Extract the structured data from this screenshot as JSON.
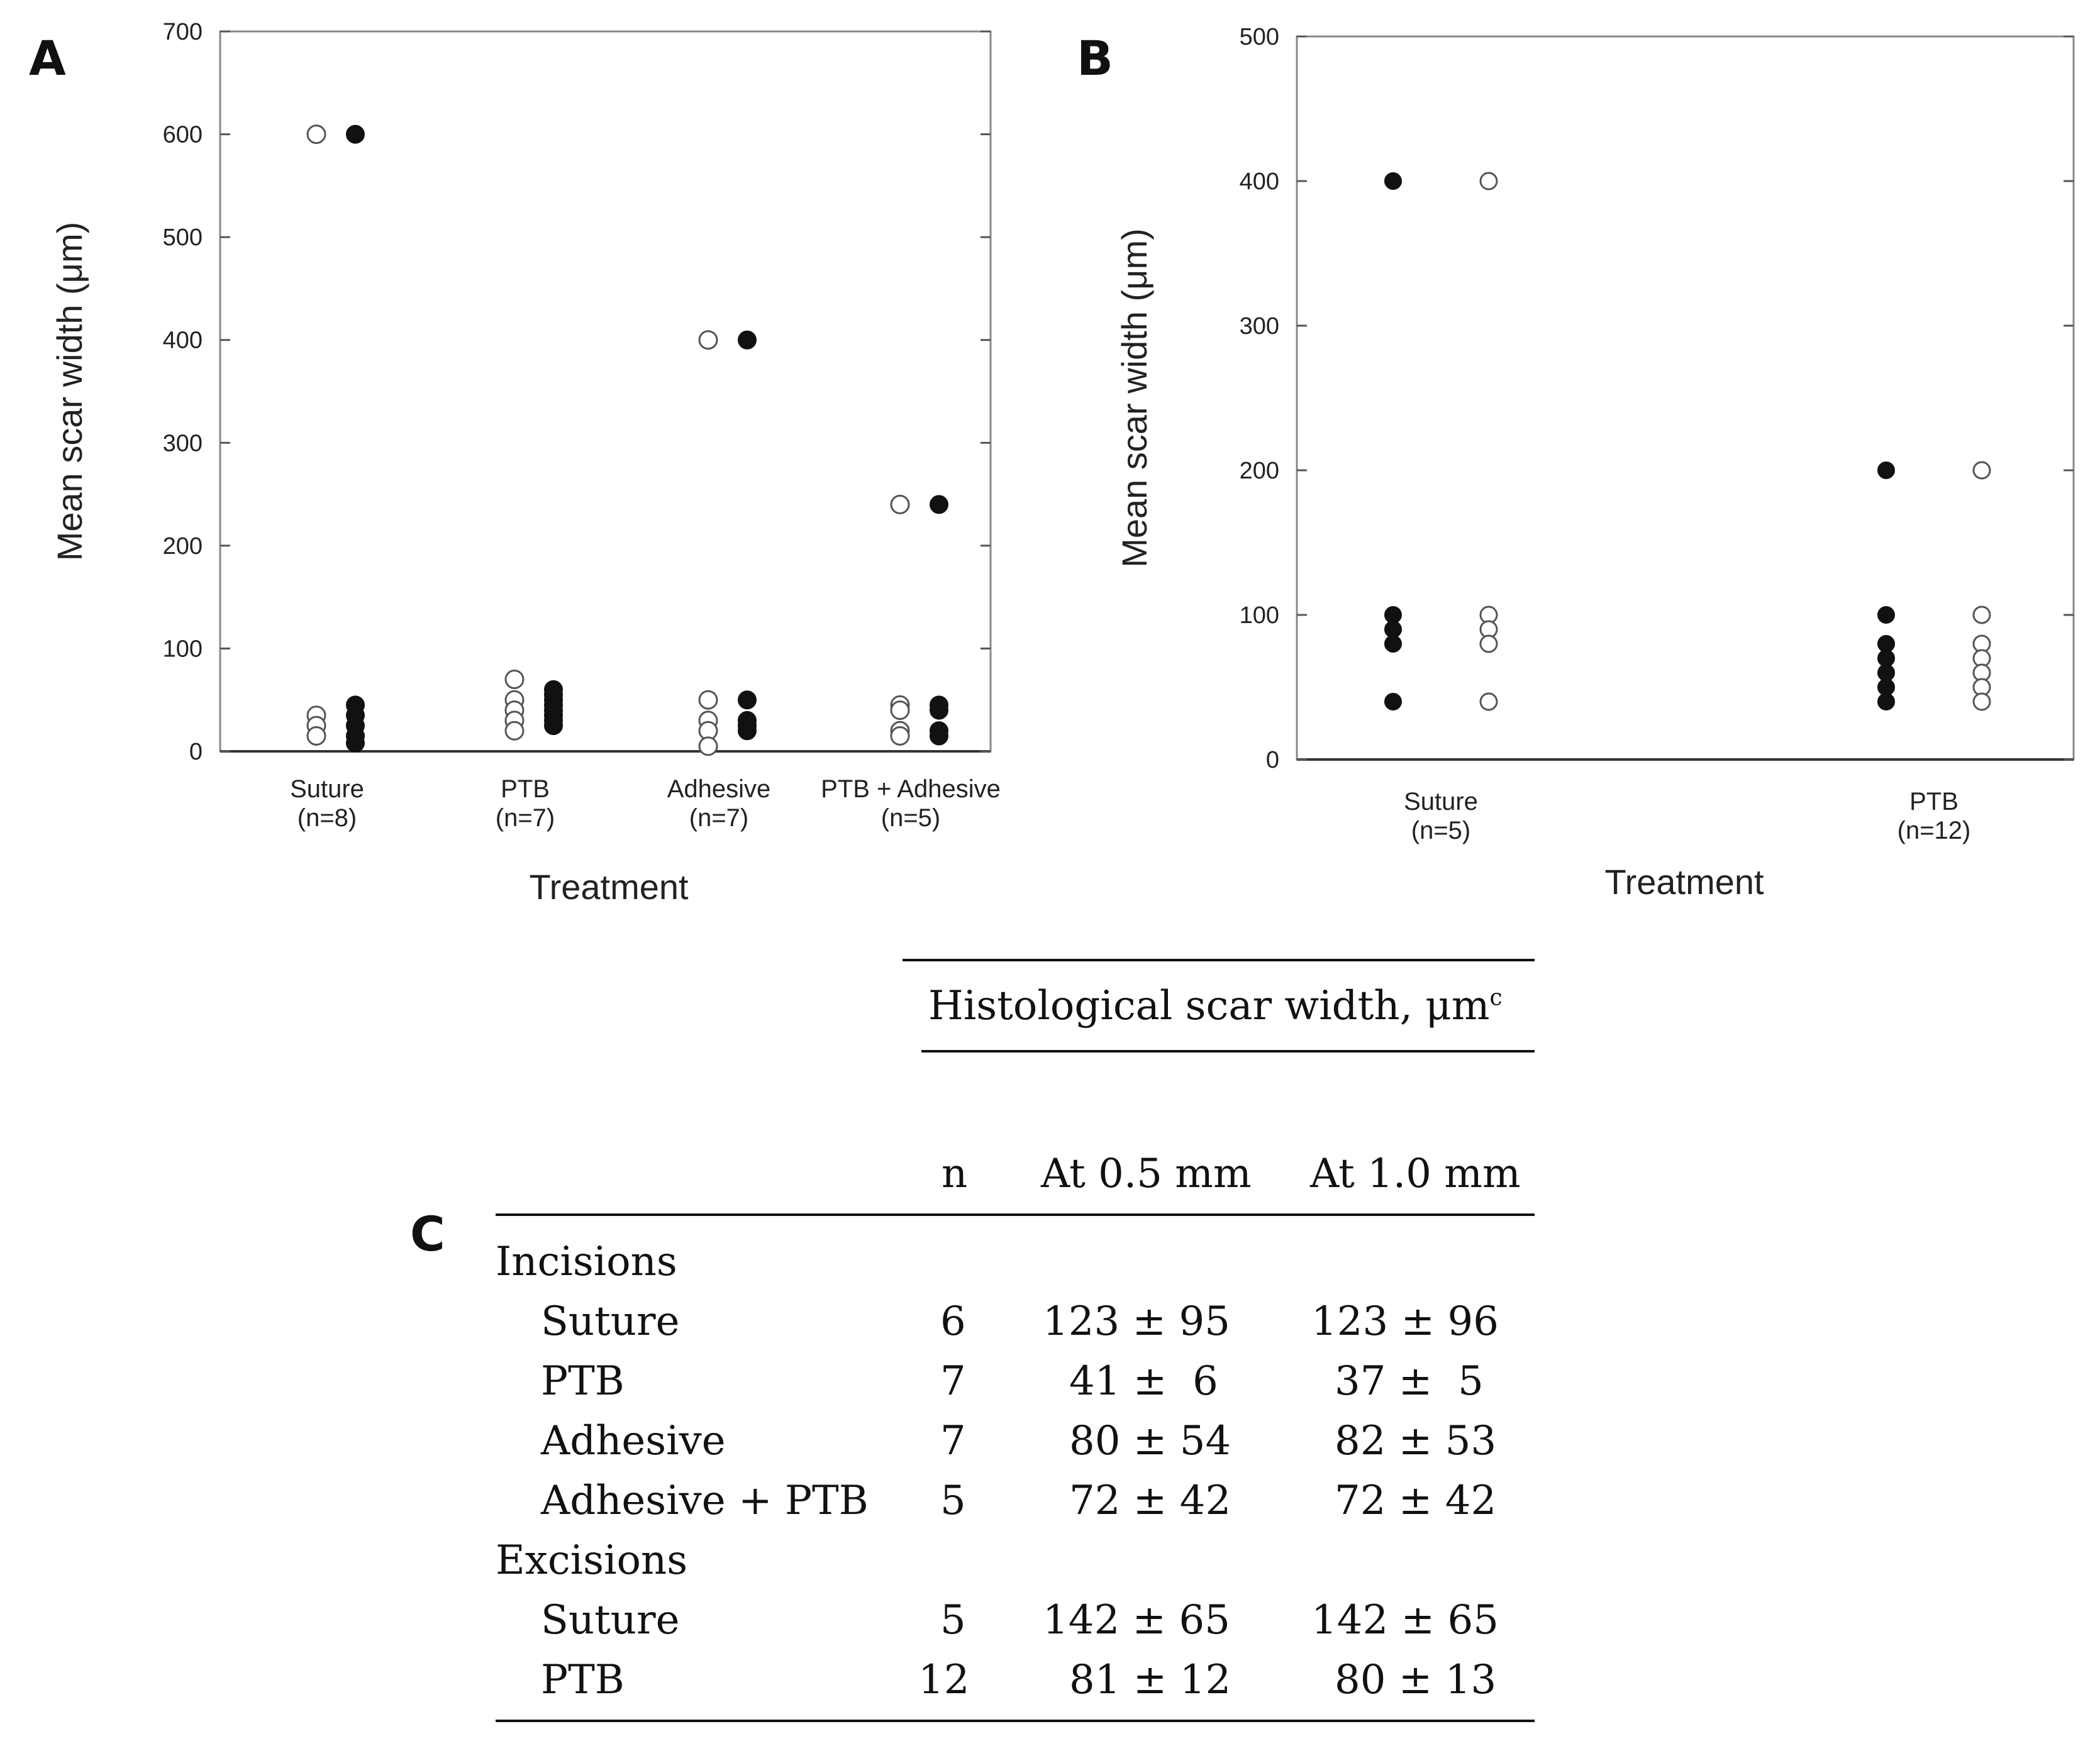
{
  "chart_data": [
    {
      "panel": "A",
      "type": "scatter",
      "ylabel": "Mean scar width (μm)",
      "xlabel": "Treatment",
      "ylim": [
        0,
        700
      ],
      "yticks": [
        0,
        100,
        200,
        300,
        400,
        500,
        600,
        700
      ],
      "categories": [
        "Suture",
        "PTB",
        "Adhesive",
        "PTB + Adhesive"
      ],
      "category_n": [
        "(n=8)",
        "(n=7)",
        "(n=7)",
        "(n=5)"
      ],
      "series": [
        {
          "name": "open",
          "marker": "open-circle",
          "values": [
            [
              600,
              35,
              25,
              15
            ],
            [
              70,
              50,
              40,
              30,
              20
            ],
            [
              400,
              50,
              30,
              20,
              5
            ],
            [
              240,
              45,
              40,
              20,
              15
            ]
          ]
        },
        {
          "name": "filled",
          "marker": "filled-circle",
          "values": [
            [
              600,
              45,
              35,
              25,
              15,
              8
            ],
            [
              60,
              55,
              50,
              45,
              40,
              35,
              30,
              25
            ],
            [
              400,
              50,
              30,
              25,
              20
            ],
            [
              240,
              45,
              40,
              20,
              15
            ]
          ]
        }
      ]
    },
    {
      "panel": "B",
      "type": "scatter",
      "ylabel": "Mean scar width (μm)",
      "xlabel": "Treatment",
      "ylim": [
        0,
        500
      ],
      "yticks": [
        0,
        100,
        200,
        300,
        400,
        500
      ],
      "categories": [
        "Suture",
        "PTB"
      ],
      "category_n": [
        "(n=5)",
        "(n=12)"
      ],
      "series": [
        {
          "name": "filled",
          "marker": "filled-circle",
          "values": [
            [
              400,
              100,
              90,
              80,
              40
            ],
            [
              200,
              100,
              80,
              70,
              60,
              50,
              40
            ]
          ]
        },
        {
          "name": "open",
          "marker": "open-circle",
          "values": [
            [
              400,
              100,
              90,
              80,
              40
            ],
            [
              200,
              100,
              80,
              70,
              60,
              50,
              40
            ]
          ]
        }
      ]
    }
  ],
  "panels": {
    "a": "A",
    "b": "B",
    "c": "C"
  },
  "table": {
    "type": "table",
    "header_group": "Histological scar width, μm",
    "header_group_sup": "c",
    "columns": [
      "n",
      "At 0.5 mm",
      "At 1.0 mm"
    ],
    "sections": [
      {
        "label": "Incisions",
        "rows": [
          {
            "label": "Suture",
            "n": "6",
            "a05": "123 ± 95",
            "a10": "123 ± 96"
          },
          {
            "label": "PTB",
            "n": "7",
            "a05": "41 ±  6",
            "a10": "37 ±  5"
          },
          {
            "label": "Adhesive",
            "n": "7",
            "a05": "80 ± 54",
            "a10": "82 ± 53"
          },
          {
            "label": "Adhesive + PTB",
            "n": "5",
            "a05": "72 ± 42",
            "a10": "72 ± 42"
          }
        ]
      },
      {
        "label": "Excisions",
        "rows": [
          {
            "label": "Suture",
            "n": "5",
            "a05": "142 ± 65",
            "a10": "142 ± 65"
          },
          {
            "label": "PTB",
            "n": "12",
            "a05": "81 ± 12",
            "a10": "80 ± 13"
          }
        ]
      }
    ]
  }
}
